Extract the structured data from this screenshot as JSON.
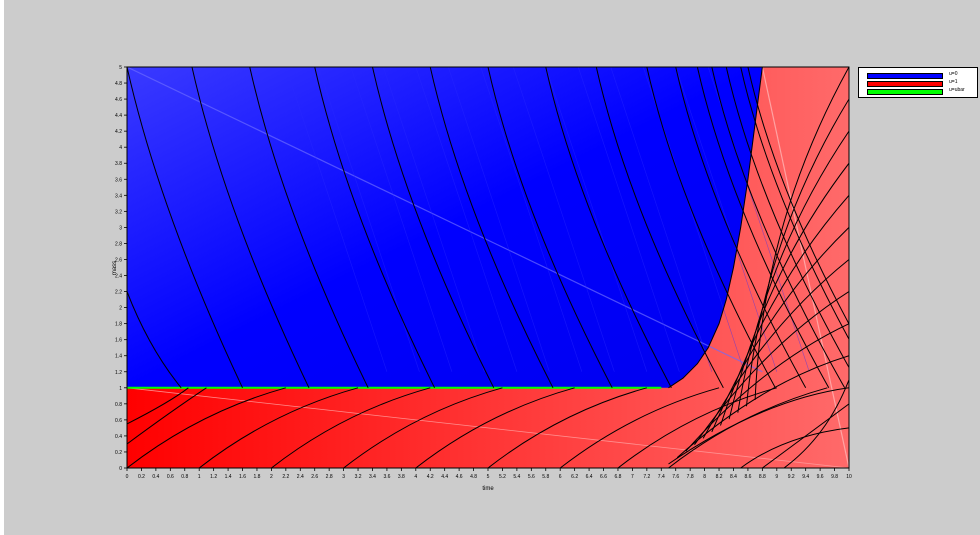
{
  "chart_data": {
    "type": "area",
    "title": "",
    "xlabel": "time",
    "ylabel": "mass",
    "xlim": [
      0,
      10
    ],
    "ylim": [
      0,
      5
    ],
    "x_ticks": [
      "0",
      "0.2",
      "0.4",
      "0.6",
      "0.8",
      "1",
      "1.2",
      "1.4",
      "1.6",
      "1.8",
      "2",
      "2.2",
      "2.4",
      "2.6",
      "2.8",
      "3",
      "3.2",
      "3.4",
      "3.6",
      "3.8",
      "4",
      "4.2",
      "4.4",
      "4.6",
      "4.8",
      "5",
      "5.2",
      "5.4",
      "5.6",
      "5.8",
      "6",
      "6.2",
      "6.4",
      "6.6",
      "6.8",
      "7",
      "7.2",
      "7.4",
      "7.6",
      "7.8",
      "8",
      "8.2",
      "8.4",
      "8.6",
      "8.8",
      "9",
      "9.2",
      "9.4",
      "9.6",
      "9.8",
      "10"
    ],
    "y_ticks": [
      "0",
      "0.2",
      "0.4",
      "0.6",
      "0.8",
      "1",
      "1.2",
      "1.4",
      "1.6",
      "1.8",
      "2",
      "2.2",
      "2.4",
      "2.6",
      "2.8",
      "3",
      "3.2",
      "3.4",
      "3.6",
      "3.8",
      "4",
      "4.2",
      "4.4",
      "4.6",
      "4.8",
      "5"
    ],
    "grid": false,
    "legend_position": "outside-right",
    "series": [
      {
        "name": "u=0",
        "color": "#0000ff",
        "region": "blue area above mass = 1 bounded on the right by the switching curve",
        "switching_curve": {
          "x": [
            7.5,
            7.7,
            7.9,
            8.05,
            8.2,
            8.3,
            8.4,
            8.5,
            8.6,
            8.7,
            8.8
          ],
          "y": [
            1.0,
            1.12,
            1.3,
            1.5,
            1.8,
            2.1,
            2.5,
            3.0,
            3.6,
            4.3,
            5.0
          ]
        }
      },
      {
        "name": "u=1",
        "color": "#ff0000",
        "region": "red area below mass = 1 and to the right of the switching curve"
      },
      {
        "name": "u=ubar",
        "color": "#00ff00",
        "segment": {
          "x": [
            0,
            7.4
          ],
          "y": [
            1.0,
            1.0
          ]
        }
      }
    ],
    "trajectories": {
      "color": "#000000",
      "upper_start_x": [
        0,
        0.9,
        1.7,
        2.6,
        3.4,
        4.2,
        5.0,
        5.8,
        6.5,
        7.2,
        7.6,
        7.9,
        8.1,
        8.3,
        8.5,
        8.6
      ],
      "upper_end_x": [
        1.6,
        2.6,
        3.4,
        4.2,
        5.0,
        5.8,
        6.6,
        7.4
      ],
      "lower_start_x": [
        0,
        1.0,
        2.0,
        3.0,
        4.0,
        5.0,
        6.0,
        6.8,
        7.5
      ],
      "lower_end_x_at_mass_1": [
        2.2,
        3.4,
        4.6,
        5.8,
        7.0,
        7.6
      ],
      "right_region_ends_mass": [
        1.0,
        1.4,
        1.8,
        2.2,
        2.6,
        3.0,
        3.4,
        3.8,
        4.2,
        4.6,
        5.0
      ]
    }
  },
  "legend": {
    "items": [
      {
        "label": "u=0",
        "color": "#0000ff"
      },
      {
        "label": "u=1",
        "color": "#ff0000"
      },
      {
        "label": "u=ubar",
        "color": "#00ff00"
      }
    ]
  }
}
